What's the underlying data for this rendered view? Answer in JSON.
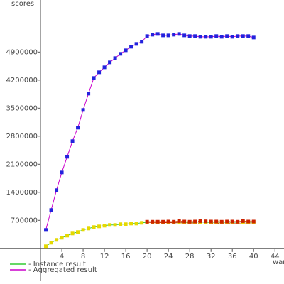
{
  "chart_data": {
    "type": "line",
    "y_label": "scores",
    "x_label": "war",
    "x": [
      1,
      2,
      3,
      4,
      5,
      6,
      7,
      8,
      9,
      10,
      11,
      12,
      13,
      14,
      15,
      16,
      17,
      18,
      19,
      20,
      21,
      22,
      23,
      24,
      25,
      26,
      27,
      28,
      29,
      30,
      31,
      32,
      33,
      34,
      35,
      36,
      37,
      38,
      39,
      40
    ],
    "series": [
      {
        "name": "- Instance result",
        "color": "#33cc33",
        "marker_color": "#e6d800",
        "values": [
          53000,
          142000,
          213000,
          266000,
          319000,
          372000,
          408000,
          461000,
          496000,
          532000,
          549000,
          567000,
          585000,
          585000,
          603000,
          603000,
          620000,
          620000,
          638000,
          650000,
          650000,
          650000,
          650000,
          655000,
          650000,
          660000,
          650000,
          650000,
          655000,
          660000,
          650000,
          650000,
          655000,
          650000,
          655000,
          650000,
          655000,
          660000,
          650000,
          655000
        ]
      },
      {
        "name": "- Aggregated result",
        "color": "#cc00cc",
        "marker_color": "#2222dd",
        "values": [
          460000,
          957000,
          1453000,
          1896000,
          2286000,
          2676000,
          3013000,
          3456000,
          3863000,
          4253000,
          4395000,
          4519000,
          4643000,
          4749000,
          4856000,
          4944000,
          5033000,
          5104000,
          5157000,
          5299000,
          5334000,
          5352000,
          5316000,
          5316000,
          5334000,
          5352000,
          5316000,
          5299000,
          5299000,
          5281000,
          5281000,
          5281000,
          5299000,
          5281000,
          5299000,
          5281000,
          5299000,
          5299000,
          5299000,
          5263000
        ]
      },
      {
        "color": "#cc2200",
        "marker_color": "#cc2200",
        "dashed": true,
        "values": [
          null,
          null,
          null,
          null,
          null,
          null,
          null,
          null,
          null,
          null,
          null,
          null,
          null,
          null,
          null,
          null,
          null,
          null,
          null,
          665000,
          665000,
          665000,
          665000,
          670000,
          665000,
          680000,
          670000,
          665000,
          670000,
          680000,
          675000,
          670000,
          670000,
          665000,
          670000,
          670000,
          665000,
          680000,
          670000,
          670000
        ]
      },
      {
        "color": "#cc2200",
        "dashed": true,
        "values": [
          null,
          null,
          null,
          null,
          null,
          null,
          null,
          null,
          null,
          null,
          null,
          null,
          null,
          null,
          null,
          null,
          null,
          null,
          null,
          650000,
          648000,
          646000,
          644000,
          642000,
          640000,
          638000,
          636000,
          634000,
          632000,
          630000,
          628000,
          626000,
          624000,
          622000,
          620000,
          618000,
          616000,
          614000,
          612000,
          610000
        ]
      }
    ],
    "xlim": [
      -7.6,
      45.7
    ],
    "ylim": [
      -890000,
      6200000
    ],
    "xticks": [
      4,
      8,
      12,
      16,
      20,
      24,
      28,
      32,
      36,
      40,
      44
    ],
    "yticks": [
      700000,
      1400000,
      2100000,
      2800000,
      3500000,
      4200000,
      4900000
    ]
  }
}
